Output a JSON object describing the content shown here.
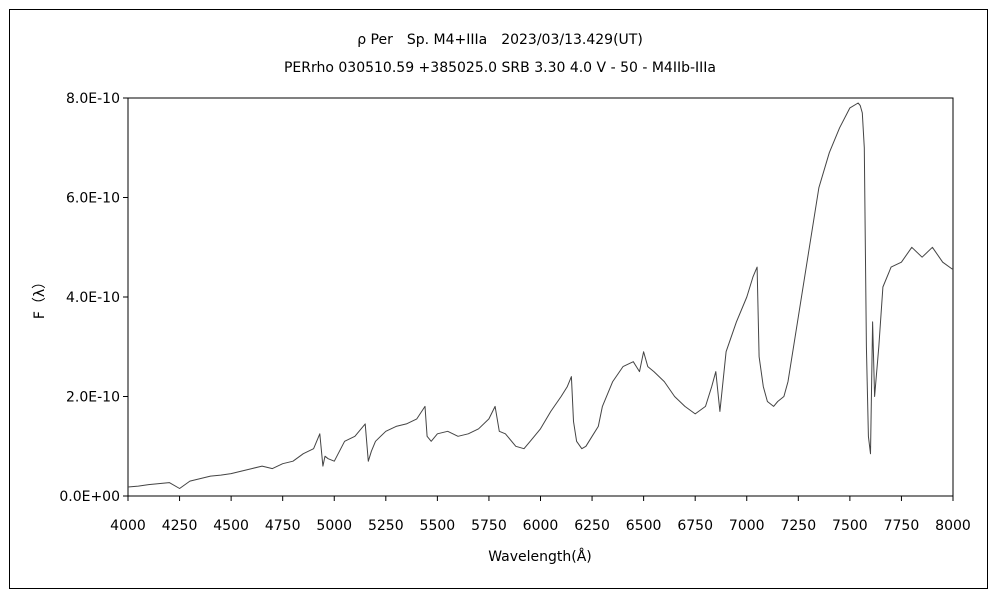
{
  "chart_data": {
    "type": "line",
    "title": "ρ Per　Sp. M4+IIIa　2023/03/13.429(UT)",
    "subtitle": "PERrho 030510.59 +385025.0 SRB 3.30 4.0 V - 50 - M4IIb-IIIa",
    "xlabel": "Wavelength(Å)",
    "ylabel": "F（λ）",
    "xlim": [
      4000,
      8000
    ],
    "ylim": [
      0,
      8e-10
    ],
    "xticks": [
      4000,
      4250,
      4500,
      4750,
      5000,
      5250,
      5500,
      5750,
      6000,
      6250,
      6500,
      6750,
      7000,
      7250,
      7500,
      7750,
      8000
    ],
    "xtick_labels": [
      "4000",
      "4250",
      "4500",
      "4750",
      "5000",
      "5250",
      "5500",
      "5750",
      "6000",
      "6250",
      "6500",
      "6750",
      "7000",
      "7250",
      "7500",
      "7750",
      "8000"
    ],
    "yticks": [
      0,
      2e-10,
      4e-10,
      6e-10,
      8e-10
    ],
    "ytick_labels": [
      "0.0E+00",
      "2.0E-10",
      "4.0E-10",
      "6.0E-10",
      "8.0E-10"
    ],
    "grid": false,
    "line_color": "#444444",
    "series": [
      {
        "x": [
          4000,
          4050,
          4100,
          4150,
          4200,
          4250,
          4300,
          4350,
          4400,
          4450,
          4500,
          4550,
          4600,
          4650,
          4700,
          4750,
          4800,
          4850,
          4900,
          4930,
          4945,
          4955,
          4970,
          5000,
          5050,
          5100,
          5150,
          5165,
          5180,
          5200,
          5250,
          5300,
          5350,
          5400,
          5440,
          5450,
          5470,
          5500,
          5550,
          5600,
          5650,
          5700,
          5750,
          5780,
          5800,
          5830,
          5880,
          5920,
          5950,
          6000,
          6050,
          6100,
          6130,
          6150,
          6160,
          6175,
          6200,
          6220,
          6250,
          6280,
          6300,
          6350,
          6400,
          6450,
          6480,
          6500,
          6520,
          6550,
          6600,
          6650,
          6700,
          6750,
          6800,
          6830,
          6850,
          6870,
          6900,
          6950,
          7000,
          7030,
          7050,
          7060,
          7080,
          7100,
          7130,
          7150,
          7180,
          7200,
          7250,
          7300,
          7350,
          7400,
          7450,
          7500,
          7540,
          7550,
          7560,
          7570,
          7580,
          7590,
          7600,
          7610,
          7620,
          7640,
          7660,
          7700,
          7750,
          7800,
          7850,
          7900,
          7950,
          8000
        ],
        "y": [
          1.8e-11,
          2e-11,
          2.3e-11,
          2.5e-11,
          2.7e-11,
          1.5e-11,
          3e-11,
          3.5e-11,
          4e-11,
          4.2e-11,
          4.5e-11,
          5e-11,
          5.5e-11,
          6e-11,
          5.5e-11,
          6.5e-11,
          7e-11,
          8.5e-11,
          9.5e-11,
          1.25e-10,
          6e-11,
          8e-11,
          7.5e-11,
          7e-11,
          1.1e-10,
          1.2e-10,
          1.45e-10,
          7e-11,
          9e-11,
          1.1e-10,
          1.3e-10,
          1.4e-10,
          1.45e-10,
          1.55e-10,
          1.8e-10,
          1.2e-10,
          1.1e-10,
          1.25e-10,
          1.3e-10,
          1.2e-10,
          1.25e-10,
          1.35e-10,
          1.55e-10,
          1.8e-10,
          1.3e-10,
          1.25e-10,
          1e-10,
          9.5e-11,
          1.1e-10,
          1.35e-10,
          1.7e-10,
          2e-10,
          2.2e-10,
          2.4e-10,
          1.5e-10,
          1.1e-10,
          9.5e-11,
          1e-10,
          1.2e-10,
          1.4e-10,
          1.8e-10,
          2.3e-10,
          2.6e-10,
          2.7e-10,
          2.5e-10,
          2.9e-10,
          2.6e-10,
          2.5e-10,
          2.3e-10,
          2e-10,
          1.8e-10,
          1.65e-10,
          1.8e-10,
          2.2e-10,
          2.5e-10,
          1.7e-10,
          2.9e-10,
          3.5e-10,
          4e-10,
          4.4e-10,
          4.6e-10,
          2.8e-10,
          2.2e-10,
          1.9e-10,
          1.8e-10,
          1.9e-10,
          2e-10,
          2.3e-10,
          3.6e-10,
          4.9e-10,
          6.2e-10,
          6.9e-10,
          7.4e-10,
          7.8e-10,
          7.9e-10,
          7.85e-10,
          7.7e-10,
          7e-10,
          3e-10,
          1.2e-10,
          8.5e-11,
          3.5e-10,
          2e-10,
          3e-10,
          4.2e-10,
          4.6e-10,
          4.7e-10,
          5e-10,
          4.8e-10,
          5e-10,
          4.7e-10,
          4.55e-10
        ]
      }
    ]
  }
}
